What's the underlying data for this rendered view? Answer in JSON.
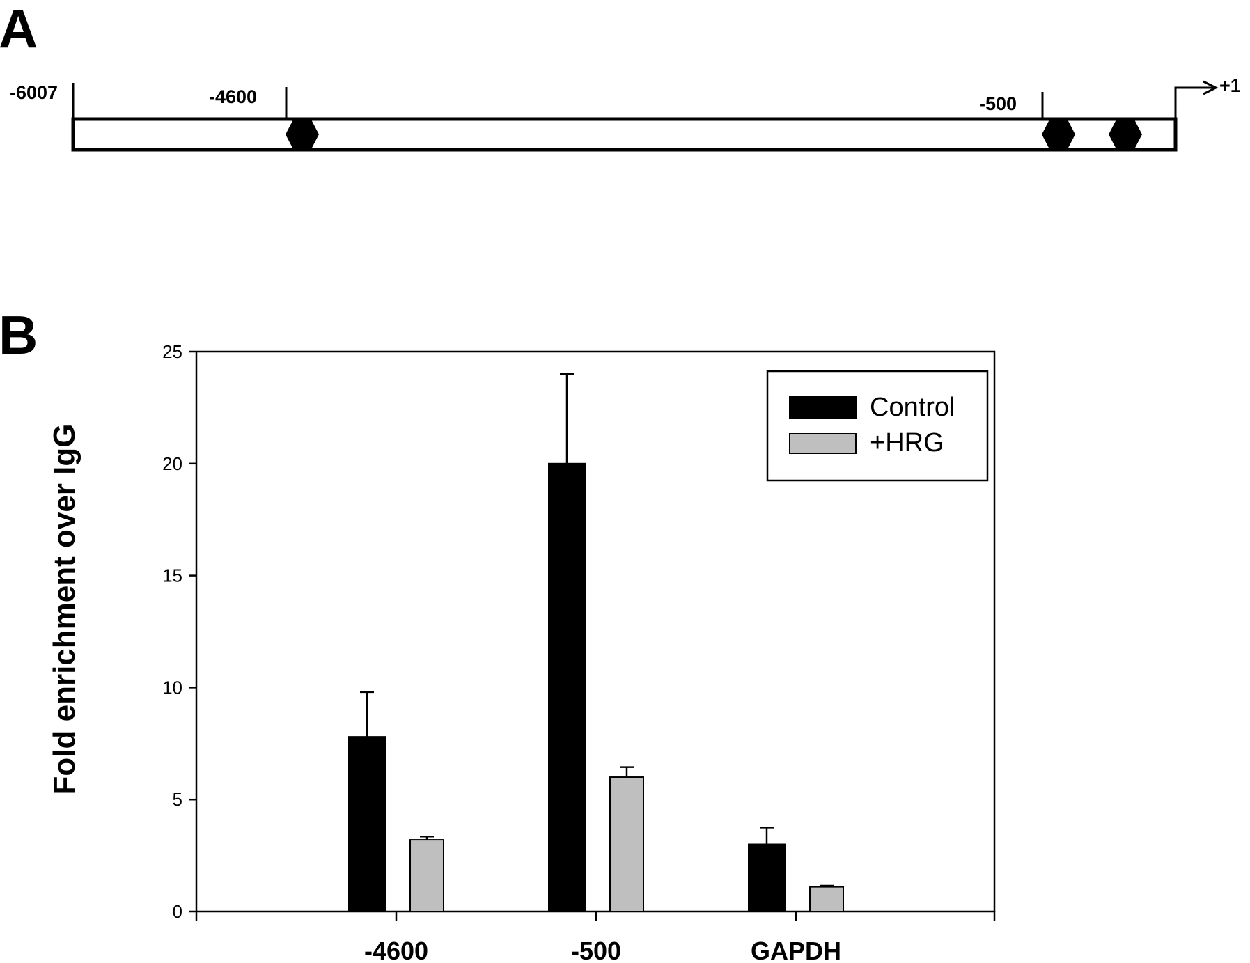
{
  "panel_a": {
    "label": "A",
    "positions": [
      "-6007",
      "-4600",
      "-500",
      "+1"
    ]
  },
  "panel_b": {
    "label": "B"
  },
  "colors": {
    "control": "#000000",
    "hrg": "#bfbfbf"
  },
  "chart_data": {
    "type": "bar",
    "categories": [
      "-4600",
      "-500",
      "GAPDH"
    ],
    "series": [
      {
        "name": "Control",
        "values": [
          7.8,
          20.0,
          3.0
        ],
        "errors": [
          2.0,
          4.0,
          0.75
        ]
      },
      {
        "name": "+HRG",
        "values": [
          3.2,
          6.0,
          1.1
        ],
        "errors": [
          0.15,
          0.45,
          0.05
        ]
      }
    ],
    "ylabel": "Fold enrichment over IgG",
    "xlabel": "",
    "ylim": [
      0,
      25
    ],
    "yticks": [
      "0",
      "5",
      "10",
      "15",
      "20",
      "25"
    ],
    "legend_position": "top-right",
    "grid": false
  }
}
